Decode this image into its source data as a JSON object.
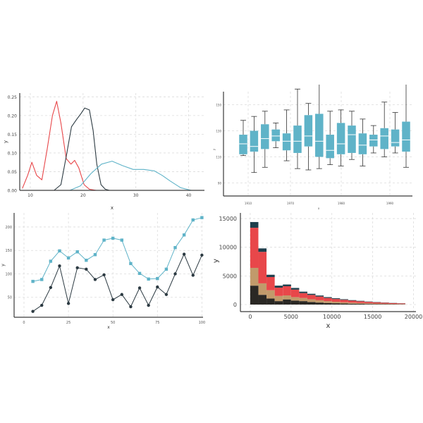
{
  "chart_data": [
    {
      "type": "line",
      "subtype": "density",
      "xlabel": "x",
      "ylabel": "y",
      "xlim": [
        8,
        43
      ],
      "ylim": [
        0,
        0.26
      ],
      "x_ticks": [
        "10",
        "20",
        "30",
        "40"
      ],
      "y_ticks": [
        "0.00",
        "0.05",
        "0.10",
        "0.15",
        "0.20",
        "0.25"
      ],
      "grid": true,
      "series": [
        {
          "color": "#e8474a",
          "x": [
            8.5,
            9.5,
            10.3,
            11.2,
            12.2,
            13.2,
            14.2,
            15.0,
            15.8,
            16.8,
            17.7,
            18.4,
            19.2,
            20.2,
            21.2,
            22.5
          ],
          "y": [
            0.005,
            0.04,
            0.075,
            0.04,
            0.028,
            0.11,
            0.2,
            0.238,
            0.18,
            0.085,
            0.07,
            0.08,
            0.06,
            0.015,
            0.003,
            0.0
          ]
        },
        {
          "color": "#2c3a42",
          "x": [
            14.5,
            15.8,
            16.8,
            17.8,
            18.8,
            19.6,
            20.3,
            21.2,
            21.9,
            22.6,
            23.4,
            24.2,
            25.0
          ],
          "y": [
            0.0,
            0.015,
            0.09,
            0.17,
            0.19,
            0.205,
            0.22,
            0.215,
            0.16,
            0.07,
            0.015,
            0.003,
            0.0
          ]
        },
        {
          "color": "#5fb3c8",
          "x": [
            17.5,
            19.5,
            21.5,
            23.5,
            25.5,
            27.5,
            29.5,
            31.5,
            33.5,
            35.0,
            36.5,
            38.5,
            40.5
          ],
          "y": [
            0.0,
            0.012,
            0.045,
            0.07,
            0.078,
            0.066,
            0.056,
            0.056,
            0.052,
            0.04,
            0.025,
            0.007,
            0.0
          ]
        }
      ]
    },
    {
      "type": "box",
      "xlabel": "x",
      "ylabel": "y",
      "grid": true,
      "x_ticks": [
        "1910",
        "1970",
        "1980",
        "1990"
      ],
      "y_ticks": [
        "90",
        "110",
        "130",
        "150"
      ],
      "ylim": [
        80,
        160
      ],
      "color": "#5fb3c8",
      "boxes": [
        {
          "lo": 111,
          "q1": 112,
          "med": 120,
          "q3": 127,
          "hi": 138
        },
        {
          "lo": 98,
          "q1": 114,
          "med": 118,
          "q3": 130,
          "hi": 141
        },
        {
          "lo": 102,
          "q1": 116,
          "med": 124,
          "q3": 135,
          "hi": 145
        },
        {
          "lo": 117,
          "q1": 122,
          "med": 126,
          "q3": 131,
          "hi": 136
        },
        {
          "lo": 107,
          "q1": 115,
          "med": 122,
          "q3": 128,
          "hi": 146
        },
        {
          "lo": 101,
          "q1": 113,
          "med": 122,
          "q3": 134,
          "hi": 162
        },
        {
          "lo": 100,
          "q1": 118,
          "med": 126,
          "q3": 142,
          "hi": 151
        },
        {
          "lo": 101,
          "q1": 110,
          "med": 122,
          "q3": 143,
          "hi": 166
        },
        {
          "lo": 104,
          "q1": 109,
          "med": 115,
          "q3": 127,
          "hi": 145
        },
        {
          "lo": 103,
          "q1": 112,
          "med": 120,
          "q3": 136,
          "hi": 146
        },
        {
          "lo": 108,
          "q1": 113,
          "med": 127,
          "q3": 134,
          "hi": 145
        },
        {
          "lo": 103,
          "q1": 112,
          "med": 119,
          "q3": 128,
          "hi": 139
        },
        {
          "lo": 113,
          "q1": 118,
          "med": 123,
          "q3": 127,
          "hi": 134
        },
        {
          "lo": 110,
          "q1": 116,
          "med": 126,
          "q3": 132,
          "hi": 152
        },
        {
          "lo": 113,
          "q1": 118,
          "med": 121,
          "q3": 131,
          "hi": 144
        },
        {
          "lo": 102,
          "q1": 114,
          "med": 123,
          "q3": 137,
          "hi": 166
        }
      ]
    },
    {
      "type": "line",
      "xlabel": "x",
      "ylabel": "y",
      "xlim": [
        0,
        105
      ],
      "ylim": [
        0,
        230
      ],
      "x_ticks": [
        "0",
        "25",
        "50",
        "75",
        "100"
      ],
      "y_ticks": [
        "50",
        "100",
        "150",
        "200"
      ],
      "grid": true,
      "x": [
        5,
        10,
        15,
        20,
        25,
        30,
        35,
        40,
        45,
        50,
        55,
        60,
        65,
        70,
        75,
        80,
        85,
        90,
        95,
        100
      ],
      "series": [
        {
          "color": "#5fb3c8",
          "marker": "square",
          "values": [
            84,
            88,
            127,
            149,
            134,
            147,
            129,
            141,
            172,
            176,
            172,
            122,
            101,
            89,
            90,
            110,
            156,
            183,
            215,
            220
          ]
        },
        {
          "color": "#2c3a42",
          "marker": "circle",
          "values": [
            20,
            33,
            71,
            117,
            37,
            113,
            110,
            88,
            98,
            45,
            56,
            30,
            70,
            33,
            72,
            56,
            100,
            142,
            97,
            140
          ]
        }
      ]
    },
    {
      "type": "bar",
      "subtype": "stacked histogram",
      "xlabel": "x",
      "ylabel": "y",
      "xlim": [
        -1200,
        20300
      ],
      "ylim": [
        0,
        15500
      ],
      "x_ticks": [
        "0",
        "5000",
        "10000",
        "15000",
        "20000"
      ],
      "y_ticks": [
        "0",
        "5000",
        "10000",
        "15000"
      ],
      "grid": true,
      "bin_starts": [
        0,
        1000,
        2000,
        3000,
        4000,
        5000,
        6000,
        7000,
        8000,
        9000,
        10000,
        11000,
        12000,
        13000,
        14000,
        15000,
        16000,
        17000,
        18000
      ],
      "bin_width": 1000,
      "series": [
        {
          "color": "#2a2824",
          "values": [
            3300,
            1700,
            1050,
            600,
            900,
            700,
            600,
            450,
            350,
            280,
            230,
            180,
            150,
            120,
            100,
            85,
            70,
            55,
            45
          ]
        },
        {
          "color": "#c19a6b",
          "values": [
            3100,
            2000,
            1450,
            900,
            700,
            600,
            550,
            480,
            400,
            320,
            260,
            220,
            180,
            150,
            120,
            100,
            80,
            60,
            50
          ]
        },
        {
          "color": "#e8474a",
          "values": [
            7000,
            5500,
            2300,
            1450,
            1600,
            1300,
            850,
            750,
            650,
            550,
            480,
            420,
            350,
            300,
            250,
            210,
            170,
            140,
            110
          ]
        },
        {
          "color": "#1e3f4c",
          "values": [
            1000,
            600,
            400,
            350,
            300,
            300,
            250,
            200,
            180,
            150,
            130,
            110,
            90,
            80,
            60,
            50,
            40,
            30,
            25
          ]
        }
      ]
    }
  ]
}
